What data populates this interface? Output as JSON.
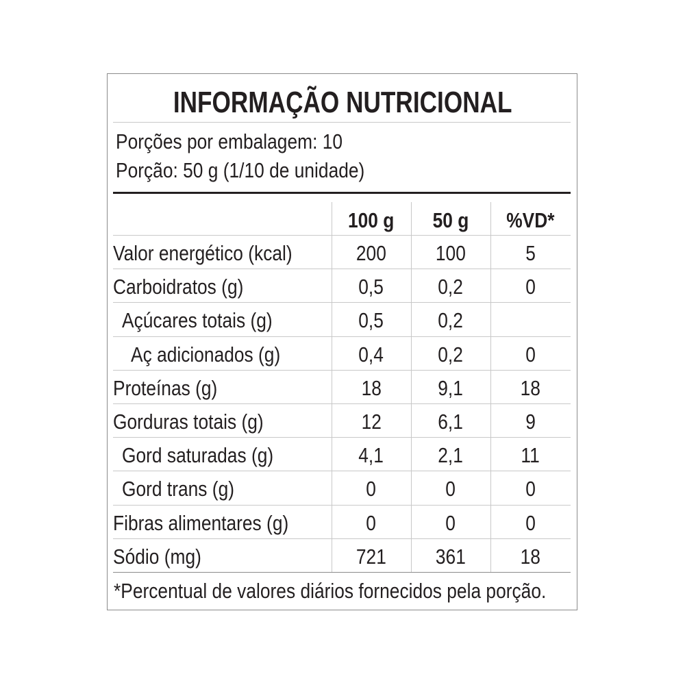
{
  "title": "INFORMAÇÃO NUTRICIONAL",
  "servings_per_package": "Porções por embalagem: 10",
  "serving_size": "Porção: 50 g (1/10 de unidade)",
  "table": {
    "headers": [
      "",
      "100 g",
      "50 g",
      "%VD*"
    ],
    "rows": [
      {
        "label": "Valor energético (kcal)",
        "indent": 0,
        "per100": "200",
        "per50": "100",
        "vd": "5"
      },
      {
        "label": "Carboidratos (g)",
        "indent": 0,
        "per100": "0,5",
        "per50": "0,2",
        "vd": "0"
      },
      {
        "label": "Açúcares totais (g)",
        "indent": 1,
        "per100": "0,5",
        "per50": "0,2",
        "vd": ""
      },
      {
        "label": "Aç adicionados (g)",
        "indent": 2,
        "per100": "0,4",
        "per50": "0,2",
        "vd": "0"
      },
      {
        "label": "Proteínas (g)",
        "indent": 0,
        "per100": "18",
        "per50": "9,1",
        "vd": "18"
      },
      {
        "label": "Gorduras totais (g)",
        "indent": 0,
        "per100": "12",
        "per50": "6,1",
        "vd": "9"
      },
      {
        "label": "Gord saturadas (g)",
        "indent": 1,
        "per100": "4,1",
        "per50": "2,1",
        "vd": "11"
      },
      {
        "label": "Gord trans (g)",
        "indent": 1,
        "per100": "0",
        "per50": "0",
        "vd": "0"
      },
      {
        "label": "Fibras alimentares (g)",
        "indent": 0,
        "per100": "0",
        "per50": "0",
        "vd": "0"
      },
      {
        "label": "Sódio (mg)",
        "indent": 0,
        "per100": "721",
        "per50": "361",
        "vd": "18"
      }
    ]
  },
  "footnote": "*Percentual de valores diários fornecidos pela porção."
}
